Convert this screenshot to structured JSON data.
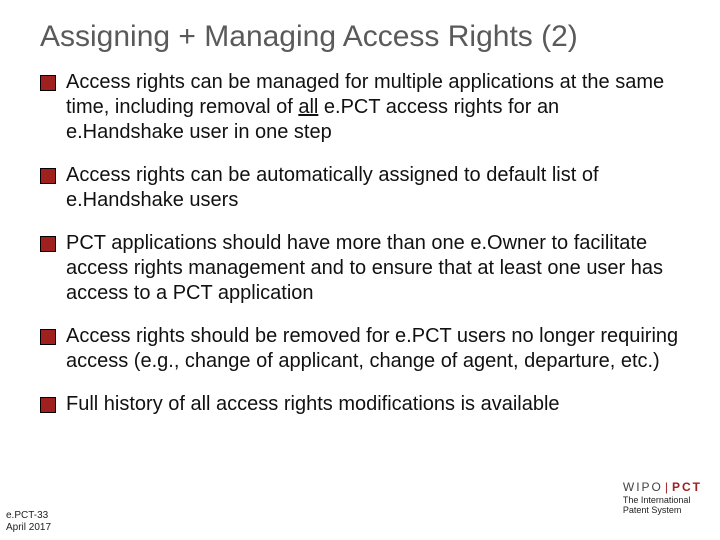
{
  "colors": {
    "bullet_fill": "#a02020",
    "title_color": "#5a5a5a",
    "text_color": "#111111",
    "background": "#ffffff",
    "brand_accent": "#a02020"
  },
  "title": "Assigning + Managing Access Rights (2)",
  "bullets": [
    {
      "pre": "Access rights can be managed for multiple applications at the same time, including removal of ",
      "underlined": "all",
      "post": " e.PCT access rights for an e.Handshake user in one step"
    },
    {
      "pre": "Access rights can be automatically assigned to default list of e.Handshake users",
      "underlined": "",
      "post": ""
    },
    {
      "pre": "PCT applications should have more than one e.Owner to facilitate access rights management and to ensure that at least one user has access to a PCT application",
      "underlined": "",
      "post": ""
    },
    {
      "pre": "Access rights should be removed for e.PCT users no longer requiring access (e.g., change of applicant, change of agent, departure, etc.)",
      "underlined": "",
      "post": ""
    },
    {
      "pre": "Full history of all access rights modifications is available",
      "underlined": "",
      "post": ""
    }
  ],
  "footer": {
    "left_line1": "e.PCT-33",
    "left_line2": "April 2017",
    "brand_wipo": "WIPO",
    "brand_sep": "|",
    "brand_pct": "PCT",
    "brand_sub_line1": "The International",
    "brand_sub_line2": "Patent System"
  }
}
